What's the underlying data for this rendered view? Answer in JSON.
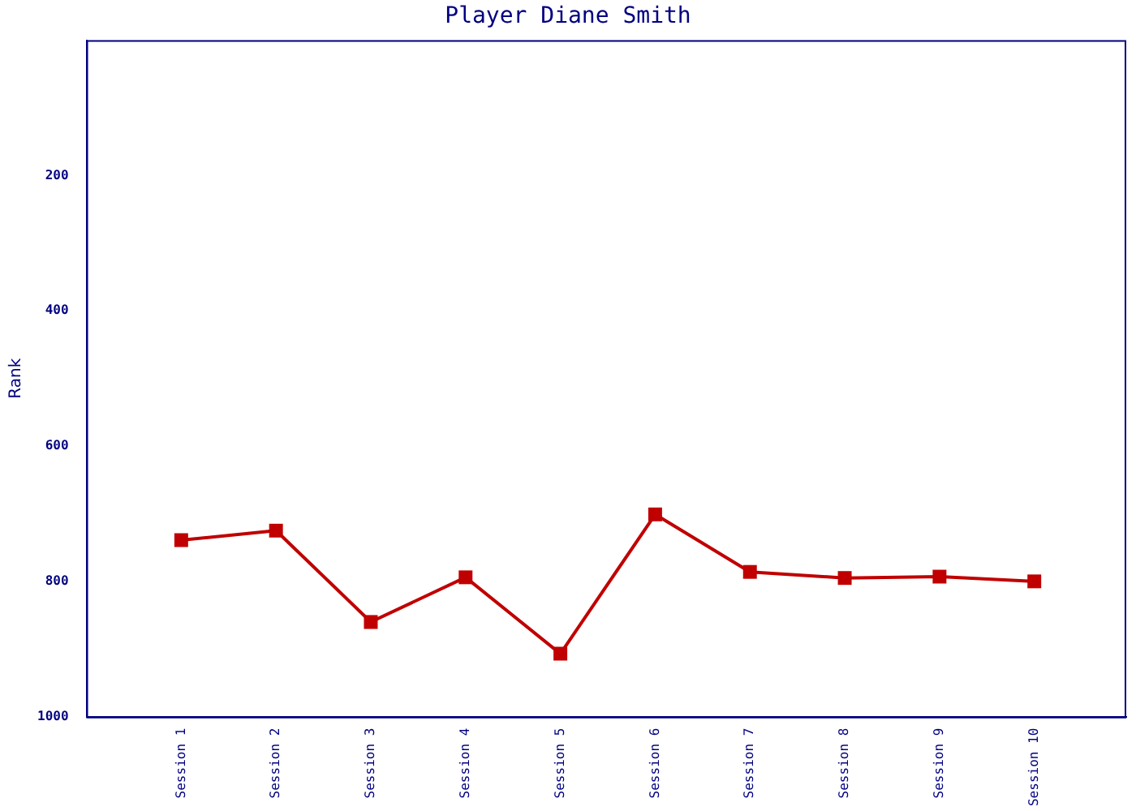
{
  "chart_data": {
    "type": "line",
    "title": "Player Diane Smith",
    "ylabel": "Rank",
    "categories": [
      "Session 1",
      "Session 2",
      "Session 3",
      "Session 4",
      "Session 5",
      "Session 6",
      "Session 7",
      "Session 8",
      "Session 9",
      "Session 10"
    ],
    "series": [
      {
        "color": "#c00000",
        "values": [
          739,
          725,
          860,
          794,
          907,
          701,
          786,
          795,
          793,
          800
        ]
      }
    ],
    "ylim": [
      1000,
      0
    ],
    "yticks": [
      200,
      400,
      600,
      800,
      1000
    ],
    "grid": false,
    "legend": false,
    "marker": "square",
    "line_style": "solid"
  }
}
